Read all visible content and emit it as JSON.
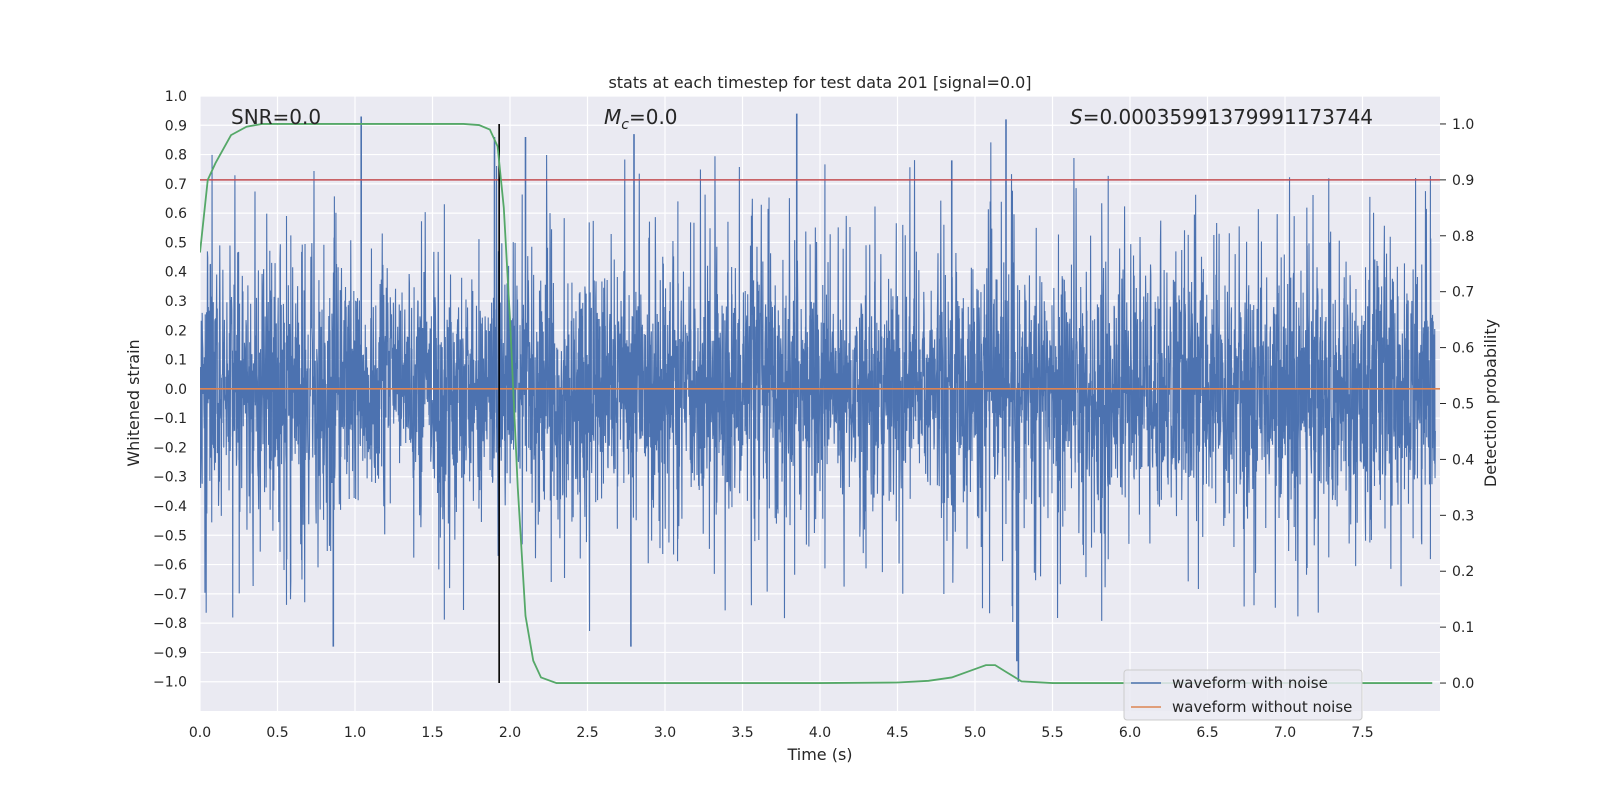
{
  "chart_data": {
    "type": "line",
    "title": "stats at each timestep for test data 201 [signal=0.0]",
    "xlabel": "Time (s)",
    "ylabel": "Whitened strain",
    "y2label": "Detection probability",
    "xlim": [
      0.0,
      8.0
    ],
    "ylim": [
      -1.1,
      1.0
    ],
    "y2lim": [
      -0.05,
      1.05
    ],
    "x_ticks": [
      0.0,
      0.5,
      1.0,
      1.5,
      2.0,
      2.5,
      3.0,
      3.5,
      4.0,
      4.5,
      5.0,
      5.5,
      6.0,
      6.5,
      7.0,
      7.5
    ],
    "x_tick_labels": [
      "0.0",
      "0.5",
      "1.0",
      "1.5",
      "2.0",
      "2.5",
      "3.0",
      "3.5",
      "4.0",
      "4.5",
      "5.0",
      "5.5",
      "6.0",
      "6.5",
      "7.0",
      "7.5"
    ],
    "y_ticks": [
      1.0,
      0.9,
      0.8,
      0.7,
      0.6,
      0.5,
      0.4,
      0.3,
      0.2,
      0.1,
      0.0,
      -0.1,
      -0.2,
      -0.3,
      -0.4,
      -0.5,
      -0.6,
      -0.7,
      -0.8,
      -0.9,
      -1.0
    ],
    "y_tick_labels": [
      "1.0",
      "0.9",
      "0.8",
      "0.7",
      "0.6",
      "0.5",
      "0.4",
      "0.3",
      "0.2",
      "0.1",
      "0.0",
      "−0.1",
      "−0.2",
      "−0.3",
      "−0.4",
      "−0.5",
      "−0.6",
      "−0.7",
      "−0.8",
      "−0.9",
      "−1.0"
    ],
    "y2_ticks": [
      1.0,
      0.9,
      0.8,
      0.7,
      0.6,
      0.5,
      0.4,
      0.3,
      0.2,
      0.1,
      0.0
    ],
    "y2_tick_labels": [
      "1.0",
      "0.9",
      "0.8",
      "0.7",
      "0.6",
      "0.5",
      "0.4",
      "0.3",
      "0.2",
      "0.1",
      "0.0"
    ],
    "annotations": {
      "snr": "SNR=0.0",
      "mc_symbol": "M",
      "mc_sub": "c",
      "mc_value": "=0.0",
      "s_symbol": "S",
      "s_value": "=0.00035991379991173744"
    },
    "series": [
      {
        "name": "waveform with noise",
        "axis": "left",
        "color": "#4c72b0",
        "description_values": "dense whitened noise, typical envelope about ±0.55, peaks about +0.95 / −1.0",
        "peaks": [
          {
            "t": 1.04,
            "v": 0.93
          },
          {
            "t": 1.9,
            "v": 0.86
          },
          {
            "t": 2.1,
            "v": 0.86
          },
          {
            "t": 2.8,
            "v": 0.87
          },
          {
            "t": 3.85,
            "v": 0.94
          },
          {
            "t": 4.85,
            "v": 0.78
          },
          {
            "t": 5.2,
            "v": 0.92
          },
          {
            "t": 0.86,
            "v": -0.88
          },
          {
            "t": 2.78,
            "v": -0.88
          },
          {
            "t": 5.28,
            "v": -1.0
          },
          {
            "t": 5.27,
            "v": -0.93
          }
        ]
      },
      {
        "name": "waveform without noise",
        "axis": "left",
        "color": "#dd8452",
        "x": [
          0.0,
          8.0
        ],
        "y": [
          0.0,
          0.0
        ]
      },
      {
        "name": "detection probability",
        "axis": "right",
        "color": "#55a868",
        "x": [
          0.0,
          0.05,
          0.1,
          0.2,
          0.3,
          0.4,
          0.5,
          1.0,
          1.5,
          1.7,
          1.8,
          1.87,
          1.92,
          1.96,
          2.0,
          2.05,
          2.1,
          2.15,
          2.2,
          2.3,
          3.0,
          4.0,
          4.5,
          4.7,
          4.85,
          5.0,
          5.07,
          5.13,
          5.2,
          5.3,
          5.5,
          6.0,
          7.0,
          7.95
        ],
        "y": [
          0.77,
          0.9,
          0.93,
          0.98,
          0.995,
          1.0,
          1.0,
          1.0,
          1.0,
          1.0,
          0.998,
          0.99,
          0.96,
          0.85,
          0.65,
          0.35,
          0.12,
          0.04,
          0.01,
          0.0,
          0.0,
          0.0,
          0.001,
          0.004,
          0.01,
          0.025,
          0.032,
          0.032,
          0.02,
          0.003,
          0.0,
          0.0,
          0.0,
          0.0
        ]
      }
    ],
    "threshold": {
      "axis": "right",
      "value": 0.9,
      "color": "#c44e52"
    },
    "vline": {
      "x": 1.93,
      "y2_from": 0.0,
      "y2_to": 1.0,
      "color": "#000000"
    },
    "legend": {
      "position": "lower-right",
      "entries": [
        {
          "label": "waveform with noise",
          "color": "#4c72b0"
        },
        {
          "label": "waveform without noise",
          "color": "#dd8452"
        }
      ]
    }
  }
}
